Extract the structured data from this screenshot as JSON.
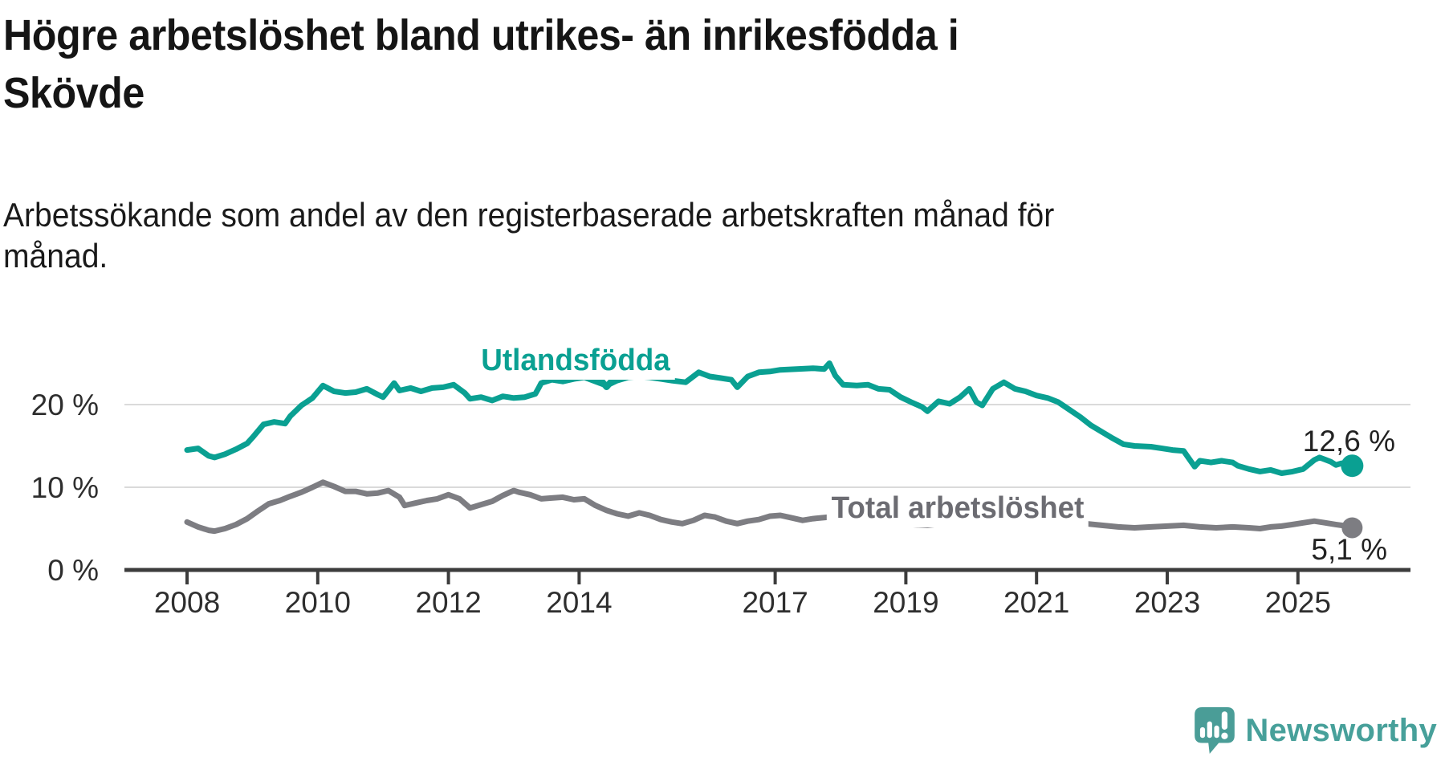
{
  "header": {
    "title_lines": [
      "Högre arbetslöshet bland utrikes- än inrikesfödda i",
      "Skövde"
    ],
    "subtitle_lines": [
      "Arbetssökande som andel av den registerbaserade arbetskraften månad för",
      "månad."
    ]
  },
  "chart_data": {
    "type": "line",
    "title": "Högre arbetslöshet bland utrikes- än inrikesfödda i Skövde",
    "subtitle": "Arbetssökande som andel av den registerbaserade arbetskraften månad för månad.",
    "xlabel": "",
    "ylabel": "",
    "y_unit": "%",
    "xlim": [
      2007.05,
      2026.7
    ],
    "ylim": [
      0,
      26
    ],
    "grid": true,
    "x_ticks": [
      2008,
      2010,
      2012,
      2014,
      2017,
      2019,
      2021,
      2023,
      2025
    ],
    "y_ticks": [
      {
        "value": 0,
        "label": "0 %"
      },
      {
        "value": 10,
        "label": "10 %"
      },
      {
        "value": 20,
        "label": "20 %"
      }
    ],
    "colors": {
      "utlandsfodda": "#0aa092",
      "total": "#7d7d82",
      "grid": "#dadada",
      "axis": "#3c3c3c",
      "tick_text": "#2e2e2e"
    },
    "annotation_arrow": {
      "series": "Utlandsfödda",
      "x": 2014.42,
      "note": "chevron pointing at line below series label"
    },
    "series": [
      {
        "name": "Utlandsfödda",
        "color": "#0aa092",
        "end_label": "12,6 %",
        "end_value": 12.6,
        "points": [
          [
            2008.0,
            14.5
          ],
          [
            2008.17,
            14.7
          ],
          [
            2008.33,
            13.8
          ],
          [
            2008.42,
            13.6
          ],
          [
            2008.58,
            14.0
          ],
          [
            2008.75,
            14.6
          ],
          [
            2008.92,
            15.3
          ],
          [
            2009.0,
            16.0
          ],
          [
            2009.17,
            17.6
          ],
          [
            2009.33,
            17.9
          ],
          [
            2009.5,
            17.7
          ],
          [
            2009.58,
            18.6
          ],
          [
            2009.75,
            19.9
          ],
          [
            2009.92,
            20.8
          ],
          [
            2010.08,
            22.3
          ],
          [
            2010.25,
            21.6
          ],
          [
            2010.42,
            21.4
          ],
          [
            2010.58,
            21.5
          ],
          [
            2010.75,
            21.9
          ],
          [
            2010.92,
            21.2
          ],
          [
            2011.0,
            20.9
          ],
          [
            2011.17,
            22.6
          ],
          [
            2011.25,
            21.7
          ],
          [
            2011.42,
            22.0
          ],
          [
            2011.58,
            21.6
          ],
          [
            2011.75,
            22.0
          ],
          [
            2011.92,
            22.1
          ],
          [
            2012.08,
            22.4
          ],
          [
            2012.25,
            21.4
          ],
          [
            2012.33,
            20.7
          ],
          [
            2012.5,
            20.9
          ],
          [
            2012.67,
            20.5
          ],
          [
            2012.83,
            21.0
          ],
          [
            2013.0,
            20.8
          ],
          [
            2013.17,
            20.9
          ],
          [
            2013.33,
            21.3
          ],
          [
            2013.38,
            22.0
          ],
          [
            2013.42,
            22.6
          ],
          [
            2013.58,
            23.0
          ],
          [
            2013.75,
            22.8
          ],
          [
            2013.92,
            23.1
          ],
          [
            2014.08,
            23.3
          ],
          [
            2014.25,
            22.8
          ],
          [
            2014.42,
            22.3
          ],
          [
            2014.58,
            22.9
          ],
          [
            2014.75,
            23.3
          ],
          [
            2014.92,
            23.4
          ],
          [
            2015.08,
            23.3
          ],
          [
            2015.25,
            23.1
          ],
          [
            2015.42,
            22.9
          ],
          [
            2015.63,
            22.7
          ],
          [
            2015.83,
            23.9
          ],
          [
            2016.0,
            23.4
          ],
          [
            2016.17,
            23.2
          ],
          [
            2016.33,
            23.0
          ],
          [
            2016.42,
            22.1
          ],
          [
            2016.58,
            23.4
          ],
          [
            2016.75,
            23.9
          ],
          [
            2016.92,
            24.0
          ],
          [
            2017.08,
            24.2
          ],
          [
            2017.33,
            24.3
          ],
          [
            2017.58,
            24.4
          ],
          [
            2017.75,
            24.3
          ],
          [
            2017.83,
            25.0
          ],
          [
            2017.92,
            23.5
          ],
          [
            2018.04,
            22.4
          ],
          [
            2018.25,
            22.3
          ],
          [
            2018.42,
            22.4
          ],
          [
            2018.58,
            21.9
          ],
          [
            2018.75,
            21.8
          ],
          [
            2018.92,
            20.9
          ],
          [
            2019.08,
            20.3
          ],
          [
            2019.25,
            19.7
          ],
          [
            2019.33,
            19.2
          ],
          [
            2019.5,
            20.4
          ],
          [
            2019.67,
            20.1
          ],
          [
            2019.83,
            20.9
          ],
          [
            2019.97,
            21.9
          ],
          [
            2020.08,
            20.3
          ],
          [
            2020.17,
            19.9
          ],
          [
            2020.33,
            21.9
          ],
          [
            2020.5,
            22.7
          ],
          [
            2020.67,
            21.9
          ],
          [
            2020.83,
            21.6
          ],
          [
            2021.0,
            21.1
          ],
          [
            2021.17,
            20.8
          ],
          [
            2021.33,
            20.3
          ],
          [
            2021.5,
            19.4
          ],
          [
            2021.67,
            18.5
          ],
          [
            2021.83,
            17.5
          ],
          [
            2022.0,
            16.7
          ],
          [
            2022.17,
            15.9
          ],
          [
            2022.33,
            15.2
          ],
          [
            2022.5,
            15.0
          ],
          [
            2022.75,
            14.9
          ],
          [
            2022.92,
            14.7
          ],
          [
            2023.08,
            14.5
          ],
          [
            2023.25,
            14.4
          ],
          [
            2023.33,
            13.5
          ],
          [
            2023.42,
            12.5
          ],
          [
            2023.5,
            13.2
          ],
          [
            2023.67,
            13.0
          ],
          [
            2023.83,
            13.2
          ],
          [
            2024.0,
            13.0
          ],
          [
            2024.08,
            12.6
          ],
          [
            2024.25,
            12.2
          ],
          [
            2024.42,
            11.9
          ],
          [
            2024.58,
            12.1
          ],
          [
            2024.75,
            11.7
          ],
          [
            2024.92,
            11.9
          ],
          [
            2025.08,
            12.2
          ],
          [
            2025.25,
            13.3
          ],
          [
            2025.33,
            13.6
          ],
          [
            2025.5,
            13.1
          ],
          [
            2025.58,
            12.7
          ],
          [
            2025.67,
            12.9
          ],
          [
            2025.83,
            12.6
          ]
        ]
      },
      {
        "name": "Total arbetslöshet",
        "color": "#7d7d82",
        "end_label": "5,1 %",
        "end_value": 5.1,
        "points": [
          [
            2008.0,
            5.8
          ],
          [
            2008.17,
            5.2
          ],
          [
            2008.33,
            4.8
          ],
          [
            2008.42,
            4.7
          ],
          [
            2008.58,
            5.0
          ],
          [
            2008.75,
            5.5
          ],
          [
            2008.92,
            6.2
          ],
          [
            2009.08,
            7.1
          ],
          [
            2009.25,
            8.0
          ],
          [
            2009.42,
            8.4
          ],
          [
            2009.58,
            8.9
          ],
          [
            2009.75,
            9.4
          ],
          [
            2009.92,
            10.0
          ],
          [
            2010.08,
            10.6
          ],
          [
            2010.25,
            10.1
          ],
          [
            2010.42,
            9.5
          ],
          [
            2010.58,
            9.5
          ],
          [
            2010.75,
            9.2
          ],
          [
            2010.92,
            9.3
          ],
          [
            2011.08,
            9.6
          ],
          [
            2011.25,
            8.8
          ],
          [
            2011.33,
            7.8
          ],
          [
            2011.5,
            8.1
          ],
          [
            2011.67,
            8.4
          ],
          [
            2011.83,
            8.6
          ],
          [
            2012.0,
            9.1
          ],
          [
            2012.17,
            8.6
          ],
          [
            2012.33,
            7.5
          ],
          [
            2012.5,
            7.9
          ],
          [
            2012.67,
            8.3
          ],
          [
            2012.83,
            9.0
          ],
          [
            2013.0,
            9.6
          ],
          [
            2013.08,
            9.4
          ],
          [
            2013.25,
            9.1
          ],
          [
            2013.42,
            8.6
          ],
          [
            2013.58,
            8.7
          ],
          [
            2013.75,
            8.8
          ],
          [
            2013.92,
            8.5
          ],
          [
            2014.08,
            8.6
          ],
          [
            2014.25,
            7.8
          ],
          [
            2014.42,
            7.2
          ],
          [
            2014.58,
            6.8
          ],
          [
            2014.75,
            6.5
          ],
          [
            2014.92,
            6.9
          ],
          [
            2015.08,
            6.6
          ],
          [
            2015.25,
            6.1
          ],
          [
            2015.42,
            5.8
          ],
          [
            2015.58,
            5.6
          ],
          [
            2015.75,
            6.0
          ],
          [
            2015.92,
            6.6
          ],
          [
            2016.08,
            6.4
          ],
          [
            2016.25,
            5.9
          ],
          [
            2016.42,
            5.6
          ],
          [
            2016.58,
            5.9
          ],
          [
            2016.75,
            6.1
          ],
          [
            2016.92,
            6.5
          ],
          [
            2017.08,
            6.6
          ],
          [
            2017.25,
            6.3
          ],
          [
            2017.42,
            6.0
          ],
          [
            2017.58,
            6.2
          ],
          [
            2017.83,
            6.4
          ],
          [
            2018.08,
            6.1
          ],
          [
            2018.33,
            5.9
          ],
          [
            2018.58,
            5.8
          ],
          [
            2018.83,
            5.6
          ],
          [
            2019.08,
            5.5
          ],
          [
            2019.33,
            5.4
          ],
          [
            2019.58,
            5.6
          ],
          [
            2019.83,
            5.8
          ],
          [
            2020.08,
            5.9
          ],
          [
            2020.33,
            6.6
          ],
          [
            2020.5,
            7.0
          ],
          [
            2020.75,
            6.8
          ],
          [
            2021.0,
            6.5
          ],
          [
            2021.25,
            6.2
          ],
          [
            2021.5,
            5.9
          ],
          [
            2021.75,
            5.6
          ],
          [
            2022.0,
            5.4
          ],
          [
            2022.25,
            5.2
          ],
          [
            2022.5,
            5.1
          ],
          [
            2022.75,
            5.2
          ],
          [
            2023.0,
            5.3
          ],
          [
            2023.25,
            5.4
          ],
          [
            2023.5,
            5.2
          ],
          [
            2023.75,
            5.1
          ],
          [
            2024.0,
            5.2
          ],
          [
            2024.25,
            5.1
          ],
          [
            2024.42,
            5.0
          ],
          [
            2024.58,
            5.2
          ],
          [
            2024.75,
            5.3
          ],
          [
            2024.92,
            5.5
          ],
          [
            2025.08,
            5.7
          ],
          [
            2025.25,
            5.9
          ],
          [
            2025.42,
            5.7
          ],
          [
            2025.58,
            5.5
          ],
          [
            2025.75,
            5.3
          ],
          [
            2025.83,
            5.1
          ]
        ]
      }
    ]
  },
  "branding": {
    "logo_text": "Newsworthy",
    "logo_icon": "newsworthy-speech-bubble-chart-icon",
    "logo_color": "#4a9d97"
  }
}
